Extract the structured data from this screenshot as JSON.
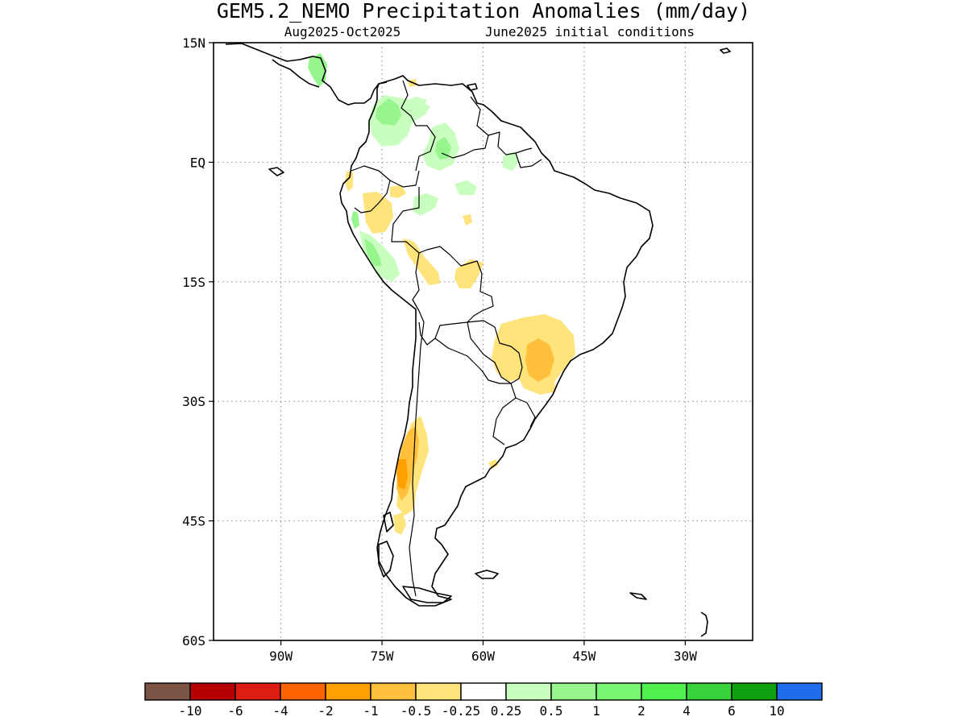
{
  "title": "GEM5.2_NEMO Precipitation Anomalies (mm/day)",
  "subtitle_left": "Aug2025-Oct2025",
  "subtitle_right": "June2025 initial conditions",
  "lat_ticks": [
    {
      "label": "15N",
      "value": 15
    },
    {
      "label": "EQ",
      "value": 0
    },
    {
      "label": "15S",
      "value": -15
    },
    {
      "label": "30S",
      "value": -30
    },
    {
      "label": "45S",
      "value": -45
    },
    {
      "label": "60S",
      "value": -60
    }
  ],
  "lon_ticks": [
    {
      "label": "90W",
      "value": -90
    },
    {
      "label": "75W",
      "value": -75
    },
    {
      "label": "60W",
      "value": -60
    },
    {
      "label": "45W",
      "value": -45
    },
    {
      "label": "30W",
      "value": -30
    }
  ],
  "map_extent": {
    "lon": [
      -100,
      -20
    ],
    "lat": [
      -60,
      15
    ]
  },
  "colorbar": {
    "colors": [
      "#7b5446",
      "#b40000",
      "#dc1e12",
      "#ff6400",
      "#ffa000",
      "#ffc03c",
      "#ffe47c",
      "#ffffff",
      "#c8ffbe",
      "#96f58c",
      "#78f573",
      "#50f050",
      "#37d23c",
      "#0fa00f",
      "#1e6eeb"
    ],
    "labels": [
      "-10",
      "-6",
      "-4",
      "-2",
      "-1",
      "-0.5",
      "-0.25",
      "0.25",
      "0.5",
      "1",
      "2",
      "4",
      "6",
      "10"
    ]
  }
}
